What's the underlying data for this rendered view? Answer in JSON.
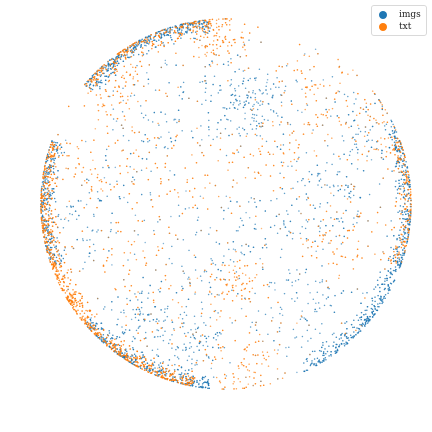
{
  "chart_data": {
    "type": "scatter",
    "title": "",
    "xlabel": "",
    "ylabel": "",
    "axes_visible": false,
    "shape": "unit-disk",
    "legend_position": "top-right",
    "xlim": [
      -1,
      1
    ],
    "ylim": [
      -1,
      1
    ],
    "series": [
      {
        "name": "imgs",
        "color": "#1f77b4",
        "boundary_weight": 0.55,
        "clusters": [
          {
            "x": 0.05,
            "y": 0.55,
            "spread": 0.12,
            "weight": 1
          },
          {
            "x": 0.18,
            "y": 0.5,
            "spread": 0.1,
            "weight": 1
          },
          {
            "x": -0.38,
            "y": 0.42,
            "spread": 0.14,
            "weight": 0.8
          },
          {
            "x": 0.55,
            "y": 0.05,
            "spread": 0.13,
            "weight": 1
          },
          {
            "x": 0.3,
            "y": -0.05,
            "spread": 0.12,
            "weight": 0.8
          },
          {
            "x": 0.4,
            "y": -0.55,
            "spread": 0.12,
            "weight": 1
          },
          {
            "x": -0.45,
            "y": -0.6,
            "spread": 0.1,
            "weight": 1.2
          },
          {
            "x": -0.2,
            "y": -0.75,
            "spread": 0.1,
            "weight": 1.4
          },
          {
            "x": -0.72,
            "y": -0.05,
            "spread": 0.14,
            "weight": 0.8
          },
          {
            "x": -0.05,
            "y": -0.3,
            "spread": 0.14,
            "weight": 0.8
          },
          {
            "x": 0.75,
            "y": 0.4,
            "spread": 0.12,
            "weight": 0.9
          }
        ],
        "boundary_arcs": [
          {
            "from_deg": 25,
            "to_deg": -65,
            "weight": 1.4
          },
          {
            "from_deg": 95,
            "to_deg": 140,
            "weight": 1.0
          },
          {
            "from_deg": -95,
            "to_deg": -140,
            "weight": 0.9
          },
          {
            "from_deg": 160,
            "to_deg": 200,
            "weight": 0.6
          }
        ]
      },
      {
        "name": "txt",
        "color": "#ff7f0e",
        "boundary_weight": 0.5,
        "clusters": [
          {
            "x": -0.05,
            "y": 0.88,
            "spread": 0.08,
            "weight": 1.4
          },
          {
            "x": -0.58,
            "y": 0.62,
            "spread": 0.09,
            "weight": 1.3
          },
          {
            "x": 0.48,
            "y": 0.58,
            "spread": 0.12,
            "weight": 1.0
          },
          {
            "x": 0.8,
            "y": 0.42,
            "spread": 0.1,
            "weight": 1.2
          },
          {
            "x": -0.7,
            "y": 0.2,
            "spread": 0.12,
            "weight": 1.2
          },
          {
            "x": -0.3,
            "y": 0.15,
            "spread": 0.14,
            "weight": 1.0
          },
          {
            "x": 0.2,
            "y": 0.25,
            "spread": 0.14,
            "weight": 1.0
          },
          {
            "x": 0.05,
            "y": -0.42,
            "spread": 0.08,
            "weight": 1.3
          },
          {
            "x": -0.55,
            "y": -0.3,
            "spread": 0.12,
            "weight": 0.9
          },
          {
            "x": 0.62,
            "y": -0.2,
            "spread": 0.12,
            "weight": 0.9
          },
          {
            "x": 0.1,
            "y": -0.85,
            "spread": 0.1,
            "weight": 1.1
          },
          {
            "x": -0.3,
            "y": -0.55,
            "spread": 0.14,
            "weight": 0.8
          }
        ],
        "boundary_arcs": [
          {
            "from_deg": 160,
            "to_deg": 215,
            "weight": 1.6
          },
          {
            "from_deg": -100,
            "to_deg": -150,
            "weight": 1.3
          },
          {
            "from_deg": 95,
            "to_deg": 140,
            "weight": 0.9
          },
          {
            "from_deg": 20,
            "to_deg": -20,
            "weight": 0.5
          }
        ]
      }
    ]
  },
  "legend": {
    "items": [
      {
        "label": "imgs",
        "color": "#1f77b4"
      },
      {
        "label": "txt",
        "color": "#ff7f0e"
      }
    ]
  }
}
